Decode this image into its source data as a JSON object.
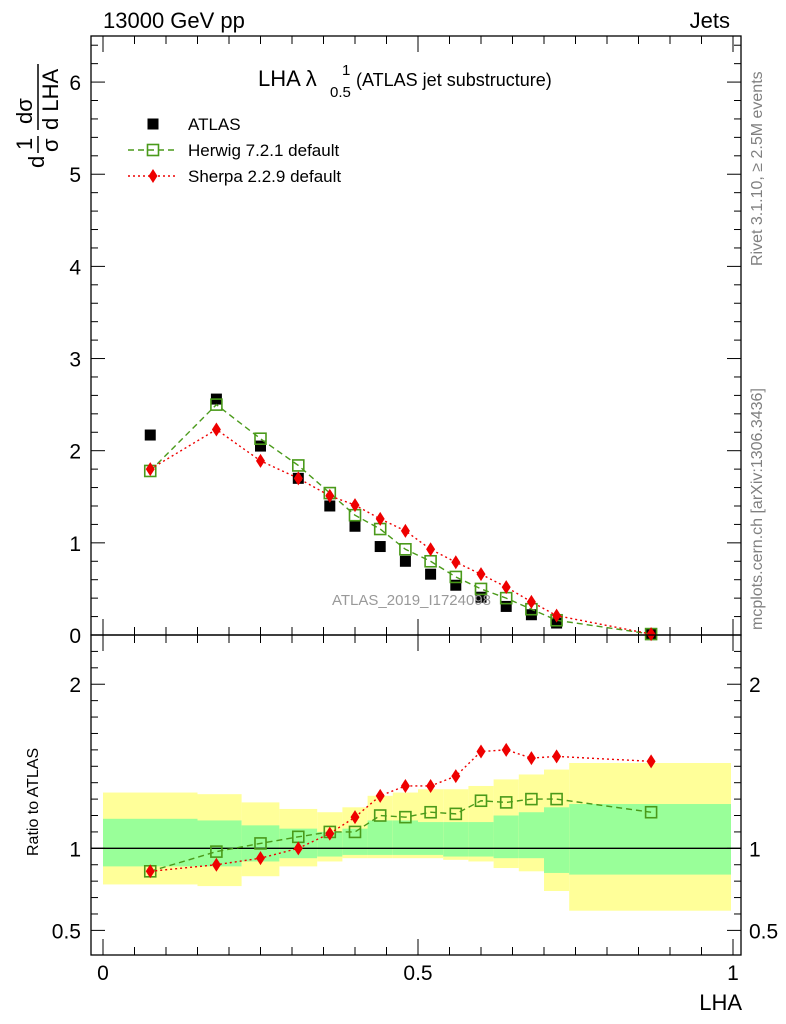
{
  "header": {
    "left": "13000 GeV pp",
    "right": "Jets"
  },
  "side_labels": {
    "top": "Rivet 3.1.10, ≥ 2.5M events",
    "bottom": "mcplots.cern.ch [arXiv:1306.3436]"
  },
  "watermark": "ATLAS_2019_I1724098",
  "upper_ylabel": {
    "part1": "1",
    "part2": "σ",
    "part3": "d",
    "part4": "dσ",
    "part5": "d LHA",
    "part6": "d"
  },
  "chart_data": [
    {
      "type": "scatter",
      "panel": "main",
      "title": "LHA λ",
      "title_sup": "1",
      "title_sub": "0.5",
      "subtitle": "(ATLAS jet substructure)",
      "xlim": [
        0,
        1
      ],
      "ylim": [
        0,
        6.5
      ],
      "yticks": [
        0,
        1,
        2,
        3,
        4,
        5,
        6
      ],
      "legend_position": "top-left",
      "series": [
        {
          "name": "ATLAS",
          "color": "#000000",
          "marker": "filled-square",
          "x": [
            0.075,
            0.18,
            0.25,
            0.31,
            0.36,
            0.4,
            0.44,
            0.48,
            0.52,
            0.56,
            0.6,
            0.64,
            0.68,
            0.72,
            0.87
          ],
          "y": [
            2.17,
            2.56,
            2.05,
            1.7,
            1.4,
            1.18,
            0.96,
            0.8,
            0.66,
            0.54,
            0.41,
            0.31,
            0.22,
            0.13,
            0.01
          ]
        },
        {
          "name": "Herwig 7.2.1 default",
          "color": "#4a9a1a",
          "marker": "open-square",
          "line": "dashed",
          "x": [
            0.075,
            0.18,
            0.25,
            0.31,
            0.36,
            0.4,
            0.44,
            0.48,
            0.52,
            0.56,
            0.6,
            0.64,
            0.68,
            0.72,
            0.87
          ],
          "y": [
            1.78,
            2.5,
            2.13,
            1.84,
            1.54,
            1.3,
            1.15,
            0.93,
            0.8,
            0.63,
            0.5,
            0.4,
            0.28,
            0.16,
            0.01
          ]
        },
        {
          "name": "Sherpa 2.2.9 default",
          "color": "#ee0000",
          "marker": "filled-diamond",
          "line": "dotted",
          "x": [
            0.075,
            0.18,
            0.25,
            0.31,
            0.36,
            0.4,
            0.44,
            0.48,
            0.52,
            0.56,
            0.6,
            0.64,
            0.68,
            0.72,
            0.87
          ],
          "y": [
            1.8,
            2.23,
            1.89,
            1.7,
            1.51,
            1.41,
            1.26,
            1.13,
            0.93,
            0.79,
            0.66,
            0.52,
            0.36,
            0.21,
            0.01
          ]
        }
      ]
    },
    {
      "type": "scatter",
      "panel": "ratio",
      "ylabel": "Ratio to ATLAS",
      "xlabel": "LHA",
      "xlim": [
        0,
        1
      ],
      "ylim": [
        0.35,
        2.3
      ],
      "yticks": [
        0.5,
        1,
        2
      ],
      "xticks": [
        0,
        0.5,
        1
      ],
      "ytick_labels": [
        "0.5",
        "1",
        "2"
      ],
      "xtick_labels": [
        "0",
        "0.5",
        "1"
      ],
      "bands": {
        "edges": [
          0,
          0.15,
          0.22,
          0.28,
          0.34,
          0.38,
          0.42,
          0.46,
          0.5,
          0.54,
          0.58,
          0.62,
          0.66,
          0.7,
          0.74,
          1.0
        ],
        "inner_color": "#99ff99",
        "outer_color": "#ffff99",
        "inner_low": [
          0.89,
          0.89,
          0.92,
          0.94,
          0.95,
          0.96,
          0.96,
          0.96,
          0.96,
          0.95,
          0.95,
          0.94,
          0.94,
          0.85,
          0.84
        ],
        "inner_high": [
          1.18,
          1.17,
          1.14,
          1.12,
          1.1,
          1.12,
          1.17,
          1.17,
          1.16,
          1.16,
          1.16,
          1.2,
          1.22,
          1.25,
          1.27
        ],
        "outer_low": [
          0.78,
          0.77,
          0.83,
          0.89,
          0.92,
          0.94,
          0.94,
          0.94,
          0.94,
          0.93,
          0.92,
          0.88,
          0.86,
          0.74,
          0.62
        ],
        "outer_high": [
          1.34,
          1.33,
          1.28,
          1.24,
          1.22,
          1.25,
          1.32,
          1.34,
          1.36,
          1.36,
          1.38,
          1.42,
          1.45,
          1.48,
          1.52
        ]
      },
      "series": [
        {
          "name": "Herwig 7.2.1 default",
          "color": "#4a9a1a",
          "marker": "open-square",
          "line": "dashed",
          "x": [
            0.075,
            0.18,
            0.25,
            0.31,
            0.36,
            0.4,
            0.44,
            0.48,
            0.52,
            0.56,
            0.6,
            0.64,
            0.68,
            0.72,
            0.87
          ],
          "y": [
            0.86,
            0.98,
            1.03,
            1.07,
            1.1,
            1.1,
            1.2,
            1.19,
            1.22,
            1.21,
            1.29,
            1.28,
            1.3,
            1.3,
            1.22
          ]
        },
        {
          "name": "Sherpa 2.2.9 default",
          "color": "#ee0000",
          "marker": "filled-diamond",
          "line": "dotted",
          "x": [
            0.075,
            0.18,
            0.25,
            0.31,
            0.36,
            0.4,
            0.44,
            0.48,
            0.52,
            0.56,
            0.6,
            0.64,
            0.68,
            0.72,
            0.87
          ],
          "y": [
            0.86,
            0.9,
            0.94,
            1.0,
            1.09,
            1.19,
            1.32,
            1.38,
            1.38,
            1.44,
            1.59,
            1.6,
            1.55,
            1.56,
            1.53
          ]
        }
      ]
    }
  ]
}
